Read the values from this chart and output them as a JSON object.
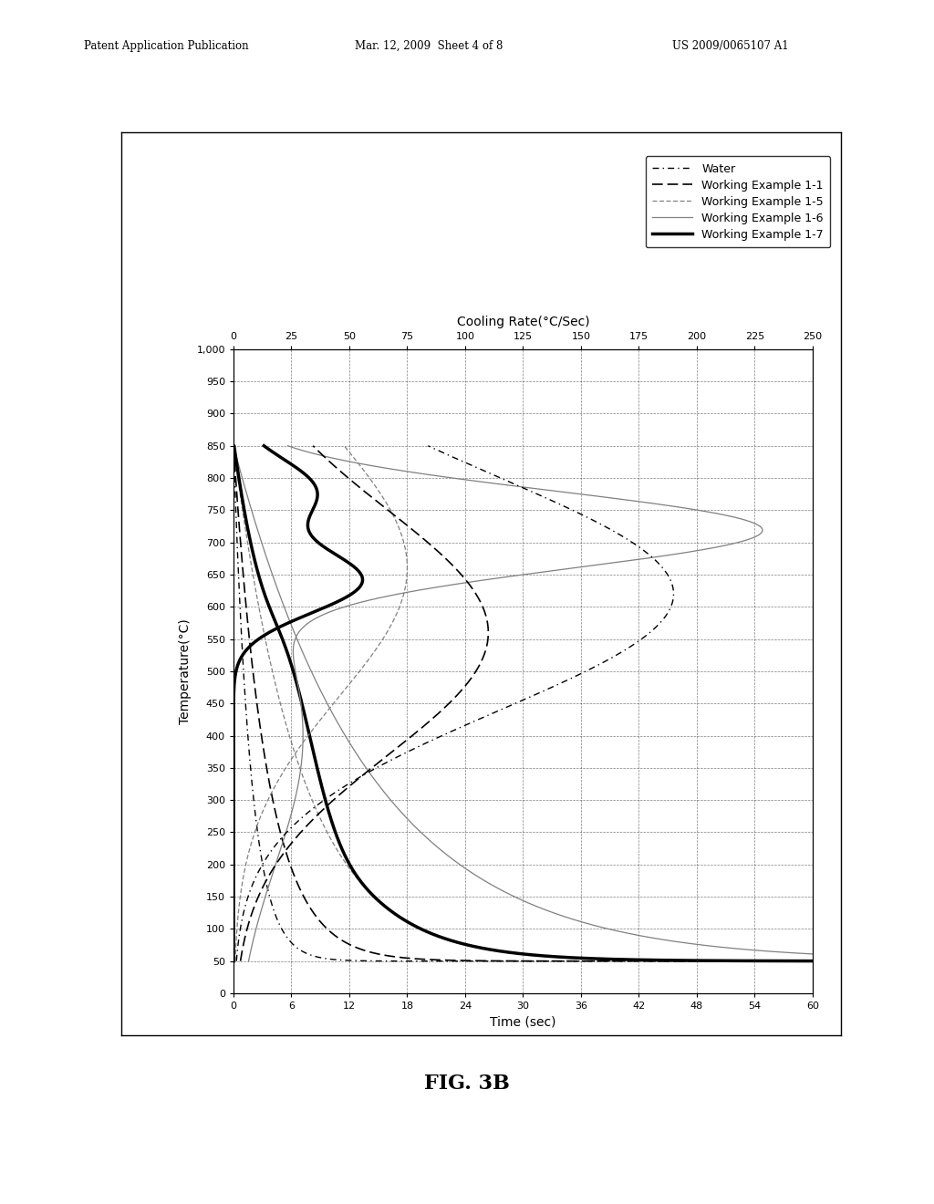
{
  "header_left": "Patent Application Publication",
  "header_mid": "Mar. 12, 2009  Sheet 4 of 8",
  "header_right": "US 2009/0065107 A1",
  "fig_label": "FIG. 3B",
  "x_label": "Time (sec)",
  "y_label": "Temperature(°C)",
  "top_x_label": "Cooling Rate(°C/Sec)",
  "x_min": 0,
  "x_max": 60,
  "y_min": 0,
  "y_max": 1000,
  "x_ticks": [
    0,
    6,
    12,
    18,
    24,
    30,
    36,
    42,
    48,
    54,
    60
  ],
  "y_ticks": [
    0,
    50,
    100,
    150,
    200,
    250,
    300,
    350,
    400,
    450,
    500,
    550,
    600,
    650,
    700,
    750,
    800,
    850,
    900,
    950,
    1000
  ],
  "top_x_ticks": [
    0,
    25,
    50,
    75,
    100,
    125,
    150,
    175,
    200,
    225,
    250
  ],
  "legend_entries": [
    "Water",
    "Working Example 1-1",
    "Working Example 1-5",
    "Working Example 1-6",
    "Working Example 1-7"
  ]
}
